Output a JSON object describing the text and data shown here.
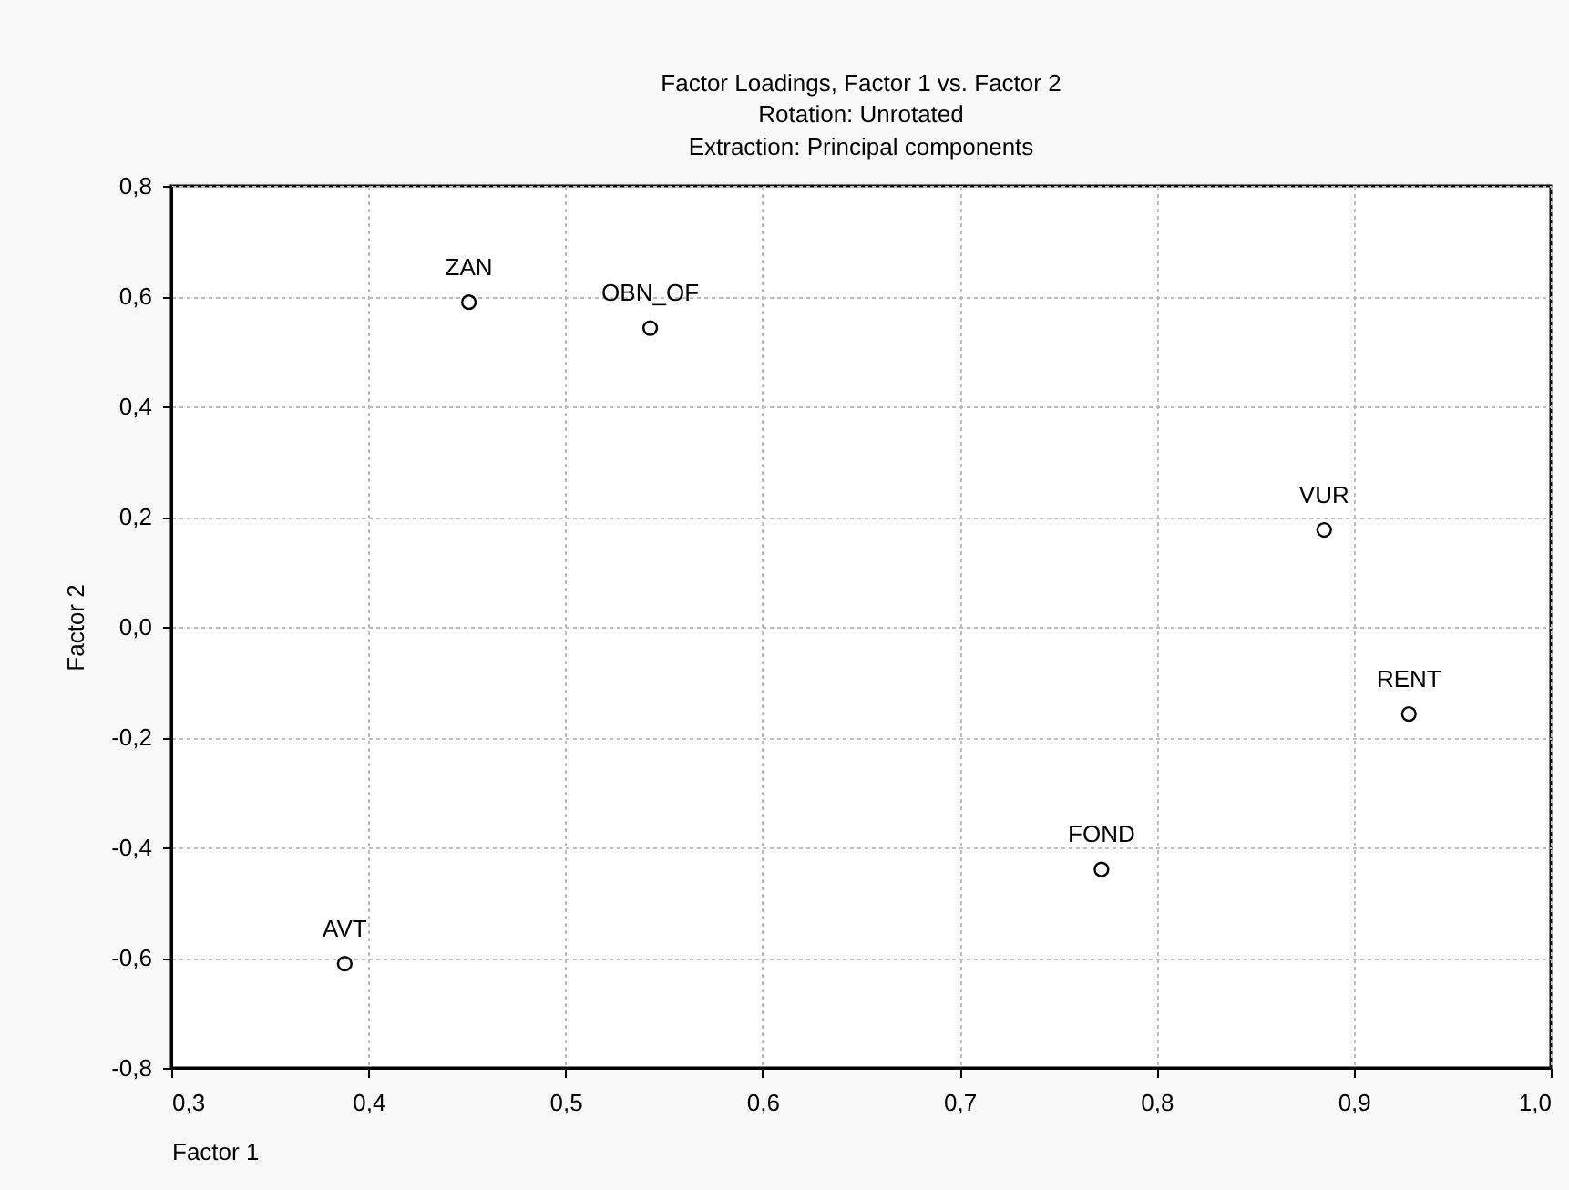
{
  "chart_data": {
    "type": "scatter",
    "title": "Factor Loadings, Factor 1 vs. Factor 2",
    "subtitle": "Rotation: Unrotated\nExtraction: Principal components",
    "xlabel": "Factor 1",
    "ylabel": "Factor 2",
    "x": [
      0.451,
      0.543,
      0.885,
      0.928,
      0.772,
      0.388
    ],
    "series": [
      {
        "color": "#000000",
        "values": [
          0.589,
          0.542,
          0.176,
          -0.158,
          -0.44,
          -0.611
        ]
      }
    ],
    "annotations": [
      {
        "text": "ZAN",
        "x": 0.451,
        "y": 0.589
      },
      {
        "text": "OBN_OF",
        "x": 0.543,
        "y": 0.542
      },
      {
        "text": "VUR",
        "x": 0.885,
        "y": 0.176
      },
      {
        "text": "RENT",
        "x": 0.928,
        "y": -0.158
      },
      {
        "text": "FOND",
        "x": 0.772,
        "y": -0.44
      },
      {
        "text": "AVT",
        "x": 0.388,
        "y": -0.611
      }
    ],
    "xlim": [
      0.3,
      1.0
    ],
    "xticks": [
      {
        "value": 0.3,
        "label": "0,3"
      },
      {
        "value": 0.4,
        "label": "0,4"
      },
      {
        "value": 0.5,
        "label": "0,5"
      },
      {
        "value": 0.6,
        "label": "0,6"
      },
      {
        "value": 0.7,
        "label": "0,7"
      },
      {
        "value": 0.8,
        "label": "0,8"
      },
      {
        "value": 0.9,
        "label": "0,9"
      },
      {
        "value": 1.0,
        "label": "1,0"
      }
    ],
    "ylim": [
      -0.8,
      0.8
    ],
    "yticks": [
      {
        "value": -0.8,
        "label": "-0,8"
      },
      {
        "value": -0.6,
        "label": "-0,6"
      },
      {
        "value": -0.4,
        "label": "-0,4"
      },
      {
        "value": -0.2,
        "label": "-0,2"
      },
      {
        "value": 0,
        "label": "0,0"
      },
      {
        "value": 0.2,
        "label": "0,2"
      },
      {
        "value": 0.4,
        "label": "0,4"
      },
      {
        "value": 0.6,
        "label": "0,6"
      },
      {
        "value": 0.8,
        "label": "0,8"
      }
    ],
    "grid": true,
    "marker": "circle"
  }
}
